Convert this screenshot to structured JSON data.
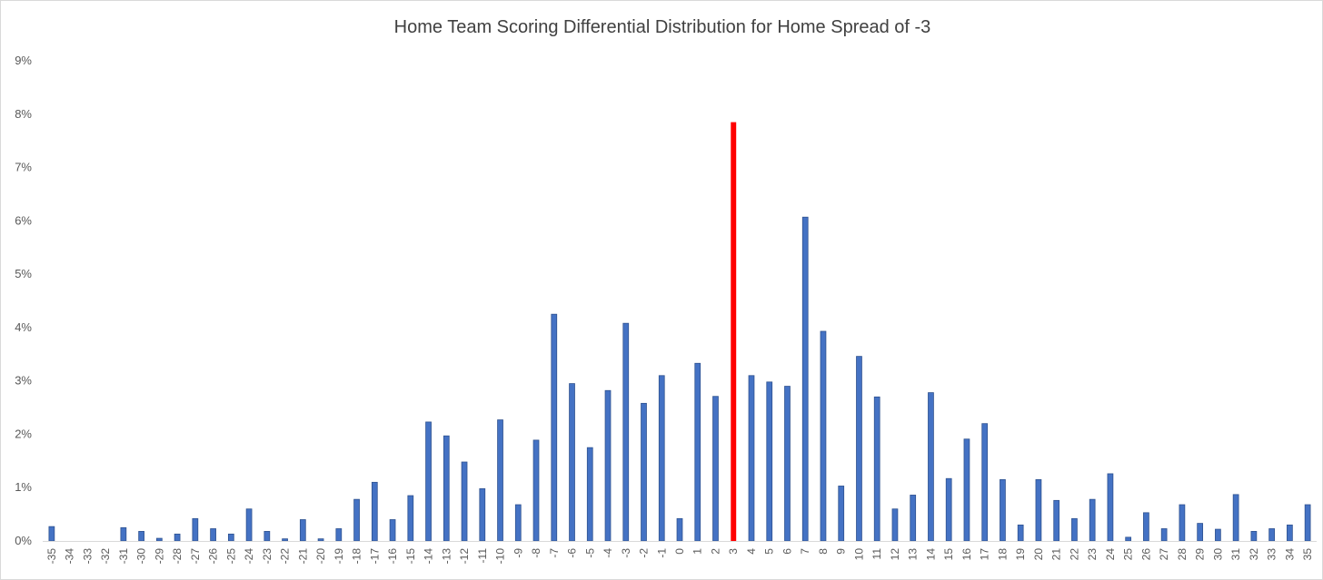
{
  "chart_data": {
    "type": "bar",
    "title": "Home Team Scoring Differential Distribution for Home Spread of -3",
    "xlabel": "",
    "ylabel": "",
    "ylim": [
      0,
      0.09
    ],
    "yticks": [
      "0%",
      "1%",
      "2%",
      "3%",
      "4%",
      "5%",
      "6%",
      "7%",
      "8%",
      "9%"
    ],
    "grid": false,
    "legend": "none",
    "bar_color": "#4472c4",
    "bar_edge_color": "#2f528f",
    "highlight_color": "#ff0000",
    "highlight_category": "3",
    "categories": [
      "-35",
      "-34",
      "-33",
      "-32",
      "-31",
      "-30",
      "-29",
      "-28",
      "-27",
      "-26",
      "-25",
      "-24",
      "-23",
      "-22",
      "-21",
      "-20",
      "-19",
      "-18",
      "-17",
      "-16",
      "-15",
      "-14",
      "-13",
      "-12",
      "-11",
      "-10",
      "-9",
      "-8",
      "-7",
      "-6",
      "-5",
      "-4",
      "-3",
      "-2",
      "-1",
      "0",
      "1",
      "2",
      "3",
      "4",
      "5",
      "6",
      "7",
      "8",
      "9",
      "10",
      "11",
      "12",
      "13",
      "14",
      "15",
      "16",
      "17",
      "18",
      "19",
      "20",
      "21",
      "22",
      "23",
      "24",
      "25",
      "26",
      "27",
      "28",
      "29",
      "30",
      "31",
      "32",
      "33",
      "34",
      "35"
    ],
    "values": [
      0.0027,
      0,
      0,
      0,
      0.0025,
      0.0018,
      0.0005,
      0.0013,
      0.0042,
      0.0023,
      0.0013,
      0.006,
      0.0018,
      0.0004,
      0.004,
      0.0004,
      0.0023,
      0.0078,
      0.011,
      0.004,
      0.0085,
      0.0223,
      0.0197,
      0.0148,
      0.0098,
      0.0227,
      0.0068,
      0.0189,
      0.0425,
      0.0295,
      0.0175,
      0.0282,
      0.0408,
      0.0258,
      0.031,
      0.0042,
      0.0333,
      0.0271,
      0.0785,
      0.031,
      0.0298,
      0.029,
      0.0607,
      0.0393,
      0.0103,
      0.0346,
      0.027,
      0.006,
      0.0086,
      0.0278,
      0.0117,
      0.0191,
      0.022,
      0.0115,
      0.003,
      0.0115,
      0.0076,
      0.0042,
      0.0078,
      0.0126,
      0.0007,
      0.0053,
      0.0023,
      0.0068,
      0.0033,
      0.0022,
      0.0087,
      0.0018,
      0.0023,
      0.003,
      0.0068
    ]
  }
}
